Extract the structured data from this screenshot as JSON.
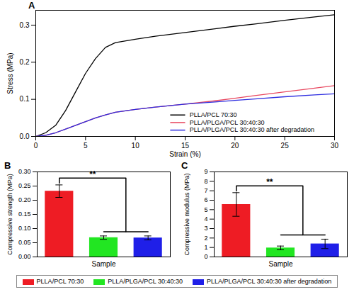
{
  "chart_data": [
    {
      "title": "A",
      "type": "line",
      "x": [
        0,
        1,
        2,
        3,
        4,
        5,
        6,
        7,
        8,
        10,
        12,
        15,
        18,
        20,
        22,
        25,
        28,
        30
      ],
      "series": [
        {
          "name": "PLLA/PCL 70:30",
          "color": "#000000",
          "values": [
            0,
            0.01,
            0.03,
            0.07,
            0.12,
            0.17,
            0.21,
            0.24,
            0.253,
            0.262,
            0.27,
            0.28,
            0.29,
            0.297,
            0.303,
            0.313,
            0.322,
            0.328
          ]
        },
        {
          "name": "PLLA/PLGA/PCL 30:40:30",
          "color": "#e8475f",
          "values": [
            0,
            0.003,
            0.01,
            0.02,
            0.03,
            0.04,
            0.05,
            0.058,
            0.065,
            0.073,
            0.079,
            0.087,
            0.096,
            0.103,
            0.11,
            0.12,
            0.13,
            0.137
          ]
        },
        {
          "name": "PLLA/PLGA/PCL 30:40:30 after degradation",
          "color": "#2e2ee0",
          "values": [
            0,
            0.003,
            0.01,
            0.02,
            0.03,
            0.04,
            0.05,
            0.058,
            0.065,
            0.073,
            0.079,
            0.087,
            0.093,
            0.097,
            0.101,
            0.107,
            0.112,
            0.115
          ]
        }
      ],
      "xlim": [
        0,
        30
      ],
      "xticks": [
        0,
        5,
        10,
        15,
        20,
        25,
        30
      ],
      "ylim": [
        0,
        0.34
      ],
      "yticks": [
        {
          "value": 0,
          "label": "0.0"
        },
        {
          "value": 0.1,
          "label": "0.1"
        },
        {
          "value": 0.2,
          "label": "0.2"
        },
        {
          "value": 0.3,
          "label": "0.3"
        }
      ],
      "x_label": "Strain (%)",
      "y_label": "Stress (MPa)",
      "legend": "lower right"
    },
    {
      "title": "B",
      "type": "bar",
      "categories": [
        "PLLA/PCL 70:30",
        "PLLA/PLGA/PCL 30:40:30",
        "PLLA/PLGA/PCL 30:40:30 after degradation"
      ],
      "values": [
        0.232,
        0.068,
        0.067
      ],
      "errors": [
        0.022,
        0.006,
        0.007
      ],
      "colors": [
        "#ee1c24",
        "#22e622",
        "#1f1fe8"
      ],
      "ylim": [
        0,
        0.3
      ],
      "yticks": [
        {
          "value": 0,
          "label": "0.00"
        },
        {
          "value": 0.05,
          "label": "0.05"
        },
        {
          "value": 0.1,
          "label": "0.10"
        },
        {
          "value": 0.15,
          "label": "0.15"
        },
        {
          "value": 0.2,
          "label": "0.20"
        },
        {
          "value": 0.25,
          "label": "0.25"
        },
        {
          "value": 0.3,
          "label": "0.30"
        }
      ],
      "x_label": "Sample",
      "y_label": "Compressive strength (MPa)",
      "annotations": [
        "**"
      ],
      "tick_labels": "y",
      "legend": "bottom"
    },
    {
      "title": "C",
      "type": "bar",
      "categories": [
        "PLLA/PCL 70:30",
        "PLLA/PLGA/PCL 30:40:30",
        "PLLA/PLGA/PCL 30:40:30 after degradation"
      ],
      "values": [
        5.55,
        0.95,
        1.38
      ],
      "errors": [
        1.25,
        0.2,
        0.5
      ],
      "colors": [
        "#ee1c24",
        "#22e622",
        "#1f1fe8"
      ],
      "ylim": [
        0,
        9
      ],
      "yticks": [
        0,
        1,
        2,
        3,
        4,
        5,
        6,
        7,
        8,
        9
      ],
      "x_label": "Sample",
      "y_label": "Compressive modulus (MPa)",
      "annotations": [
        "**"
      ],
      "tick_labels": "y"
    }
  ]
}
